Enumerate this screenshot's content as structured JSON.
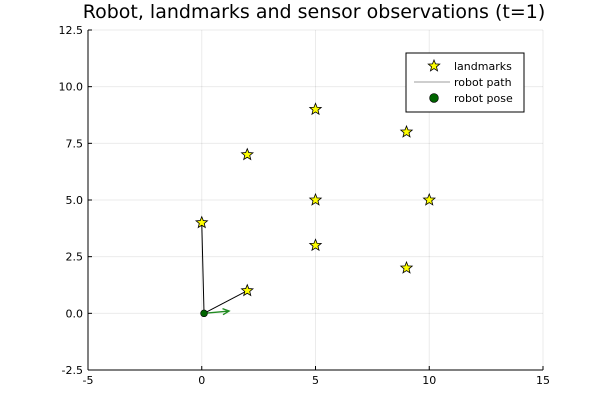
{
  "chart_data": {
    "type": "scatter",
    "title": "Robot, landmarks and sensor observations (t=1)",
    "xlabel": "",
    "ylabel": "",
    "xlim": [
      -5,
      15
    ],
    "ylim": [
      -2.5,
      12.5
    ],
    "xticks": [
      -5,
      0,
      5,
      10,
      15
    ],
    "xtick_labels": [
      "-5",
      "0",
      "5",
      "10",
      "15"
    ],
    "yticks": [
      -2.5,
      0,
      2.5,
      5,
      7.5,
      10,
      12.5
    ],
    "ytick_labels": [
      "-2.5",
      "0.0",
      "2.5",
      "5.0",
      "7.5",
      "10.0",
      "12.5"
    ],
    "grid": true,
    "legend_position": "top-right",
    "series": [
      {
        "name": "landmarks",
        "marker": "star",
        "color": "#ffff00",
        "points": [
          [
            0,
            4
          ],
          [
            2,
            1
          ],
          [
            2,
            7
          ],
          [
            5,
            9
          ],
          [
            5,
            5
          ],
          [
            5,
            3
          ],
          [
            9,
            8
          ],
          [
            9,
            2
          ],
          [
            10,
            5
          ]
        ]
      },
      {
        "name": "robot path",
        "marker": "line",
        "color": "#b0b0b0",
        "points": [
          [
            0.1,
            0
          ]
        ]
      },
      {
        "name": "robot pose",
        "marker": "circle",
        "color": "#006400",
        "points": [
          [
            0.1,
            0
          ]
        ]
      }
    ],
    "heading_arrow": {
      "from": [
        0.1,
        0
      ],
      "to": [
        1.2,
        0.1
      ],
      "color": "#228b22"
    },
    "observations": [
      {
        "from": [
          0.1,
          0
        ],
        "to": [
          0,
          4
        ]
      },
      {
        "from": [
          0.1,
          0
        ],
        "to": [
          2,
          1
        ]
      }
    ]
  }
}
